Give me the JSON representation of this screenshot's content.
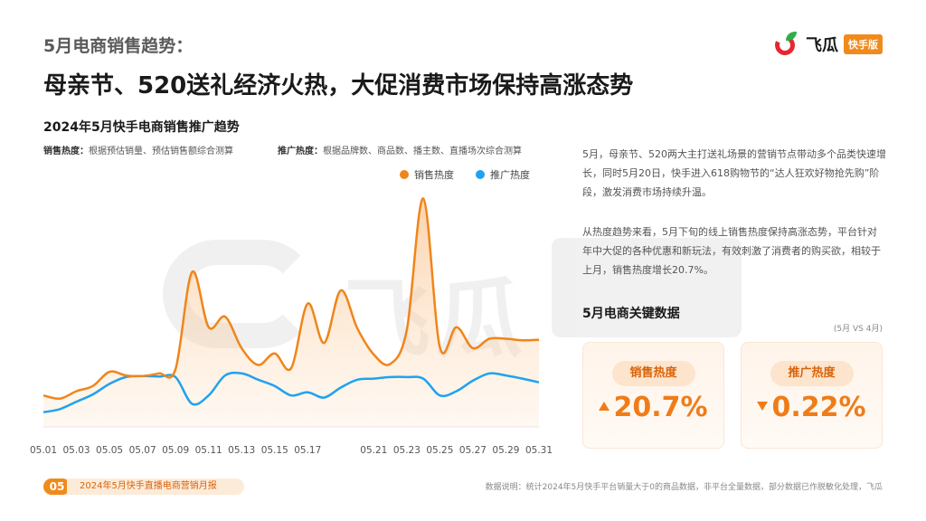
{
  "eyebrow": "5月电商销售趋势：",
  "headline": "母亲节、520送礼经济火热，大促消费市场保持高涨态势",
  "logo": {
    "name": "飞瓜",
    "badge": "快手版"
  },
  "watermark": {
    "text": "飞瓜",
    "badge": "快手版"
  },
  "chart_section": {
    "title": "2024年5月快手电商销售推广趋势",
    "note_sales_label": "销售热度：",
    "note_sales_text": "根据预估销量、预估销售额综合测算",
    "note_promo_label": "推广热度：",
    "note_promo_text": "根据品牌数、商品数、播主数、直播场次综合测算"
  },
  "colors": {
    "sales": "#f0851b",
    "promo": "#1fa2f0",
    "accent": "#f08a1c"
  },
  "chart_data": {
    "type": "line",
    "x": [
      "05.01",
      "05.02",
      "05.03",
      "05.04",
      "05.05",
      "05.06",
      "05.07",
      "05.08",
      "05.09",
      "05.10",
      "05.11",
      "05.12",
      "05.13",
      "05.14",
      "05.15",
      "05.16",
      "05.17",
      "05.18",
      "05.19",
      "05.20",
      "05.21",
      "05.22",
      "05.23",
      "05.24",
      "05.25",
      "05.26",
      "05.27",
      "05.28",
      "05.29",
      "05.30",
      "05.31"
    ],
    "x_tick_labels": [
      "05.01",
      "05.03",
      "05.05",
      "05.07",
      "05.09",
      "05.11",
      "05.13",
      "05.15",
      "05.17",
      "05.21",
      "05.23",
      "05.25",
      "05.27",
      "05.29",
      "05.31"
    ],
    "series": [
      {
        "name": "销售热度",
        "values": [
          6.0,
          5.4,
          6.8,
          7.8,
          10.5,
          9.8,
          9.7,
          10.2,
          11.0,
          29.5,
          19.0,
          21.0,
          15.0,
          11.8,
          14.0,
          11.2,
          23.5,
          16.0,
          26.0,
          18.8,
          13.8,
          12.0,
          18.5,
          43.5,
          15.2,
          19.0,
          15.0,
          16.8,
          16.8,
          16.5,
          16.6
        ]
      },
      {
        "name": "推广热度",
        "values": [
          2.8,
          3.4,
          4.8,
          6.2,
          8.2,
          9.5,
          9.7,
          9.6,
          9.5,
          4.4,
          6.0,
          9.8,
          10.2,
          9.0,
          7.8,
          6.0,
          6.6,
          5.6,
          7.5,
          9.0,
          9.2,
          9.5,
          9.5,
          9.2,
          6.0,
          6.8,
          8.8,
          10.2,
          9.8,
          9.2,
          8.5
        ]
      }
    ],
    "ylim": [
      0,
      46
    ],
    "grid": false,
    "legend": "top-right"
  },
  "legend": {
    "sales": "销售热度",
    "promo": "推广热度"
  },
  "paragraphs": [
    "5月，母亲节、520两大主打送礼场景的营销节点带动多个品类快速增长，同时5月20日，快手进入618购物节的“达人狂欢好物抢先购”阶段，激发消费市场持续升温。",
    "从热度趋势来看，5月下旬的线上销售热度保持高涨态势，平台针对年中大促的各种优惠和新玩法，有效刺激了消费者的购买欲，相较于上月，销售热度增长20.7%。"
  ],
  "key_data": {
    "title": "5月电商关键数据",
    "compare": "(5月 VS 4月)",
    "cards": [
      {
        "label": "销售热度",
        "value": "20.7%",
        "direction": "up"
      },
      {
        "label": "推广热度",
        "value": "0.22%",
        "direction": "down"
      }
    ]
  },
  "footer": {
    "page": "05",
    "report": "2024年5月快手直播电商营销月报",
    "note": "数据说明：统计2024年5月快手平台销量大于0的商品数据，非平台全量数据，部分数据已作脱敏化处理，飞瓜"
  }
}
